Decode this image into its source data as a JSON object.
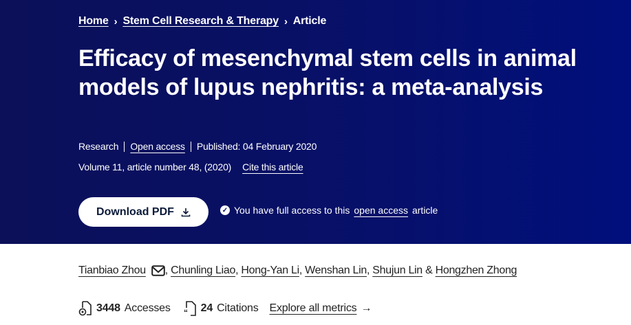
{
  "breadcrumb": [
    {
      "label": "Home"
    },
    {
      "label": "Stem Cell Research & Therapy"
    },
    {
      "label": "Article"
    }
  ],
  "title": "Efficacy of mesenchymal stem cells in animal models of lupus nephritis: a meta-analysis",
  "meta": {
    "type": "Research",
    "access": "Open access",
    "published": "Published: 04 February 2020",
    "volume": "Volume 11, article number 48, (2020)",
    "cite": "Cite this article"
  },
  "download": {
    "label": "Download PDF",
    "icon": "download-icon"
  },
  "access_note": {
    "prefix": "You have full access to this",
    "link": "open access",
    "suffix": "article",
    "icon": "check-circle-icon"
  },
  "authors": [
    {
      "name": "Tianbiao Zhou"
    },
    {
      "name": "Chunling Liao"
    },
    {
      "name": "Hong-Yan Li"
    },
    {
      "name": "Wenshan Lin"
    },
    {
      "name": "Shujun Lin"
    },
    {
      "name": "Hongzhen Zhong"
    }
  ],
  "authors_sep": {
    "comma": ",",
    "amp": "&"
  },
  "metrics": {
    "accesses_count": "3448",
    "accesses_label": "Accesses",
    "citations_count": "24",
    "citations_label": "Citations",
    "explore": "Explore all metrics",
    "arrow": "→"
  },
  "colors": {
    "hero_bg": "#07106a",
    "text_dark": "#222222"
  }
}
